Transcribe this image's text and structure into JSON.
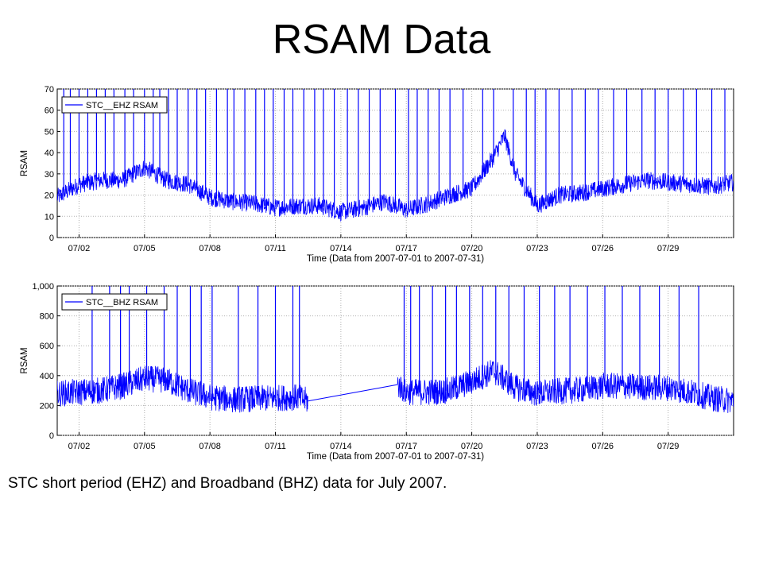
{
  "slide_title": "RSAM Data",
  "caption": "STC short period (EHZ) and Broadband (BHZ) data for July 2007.",
  "chart_data": [
    {
      "type": "line",
      "ylabel": "RSAM",
      "xlabel": "Time (Data from 2007-07-01 to 2007-07-31)",
      "legend": "STC__EHZ RSAM",
      "legend_placement": "top-left",
      "series_color": "#0000ff",
      "grid": true,
      "xlim": [
        0,
        31
      ],
      "ylim": [
        0,
        70
      ],
      "x_ticks": [
        1,
        4,
        7,
        10,
        13,
        16,
        19,
        22,
        25,
        28
      ],
      "x_tick_labels": [
        "07/02",
        "07/05",
        "07/08",
        "07/11",
        "07/14",
        "07/17",
        "07/20",
        "07/23",
        "07/26",
        "07/29"
      ],
      "y_ticks": [
        0,
        10,
        20,
        30,
        40,
        50,
        60,
        70
      ],
      "y_tick_labels": [
        "0",
        "10",
        "20",
        "30",
        "40",
        "50",
        "60",
        "70"
      ],
      "x": [
        0,
        1,
        2,
        3,
        4,
        5,
        6,
        7,
        8,
        9,
        10,
        11,
        12,
        13,
        14,
        15,
        16,
        17,
        18,
        19,
        20,
        20.5,
        21,
        22,
        23,
        24,
        25,
        26,
        27,
        28,
        29,
        30,
        31
      ],
      "y": [
        19,
        25,
        27,
        27,
        33,
        27,
        25,
        19,
        17,
        16,
        14,
        15,
        15,
        12,
        14,
        17,
        13,
        16,
        20,
        23,
        38,
        48,
        30,
        15,
        20,
        21,
        23,
        25,
        27,
        26,
        25,
        24,
        26
      ],
      "spikes": [
        0.3,
        0.6,
        1.0,
        1.4,
        1.8,
        2.2,
        2.6,
        3.1,
        3.5,
        4.0,
        4.4,
        4.7,
        5.1,
        5.5,
        6.0,
        6.4,
        6.8,
        7.3,
        7.8,
        8.1,
        8.6,
        9.1,
        9.5,
        9.9,
        10.4,
        10.8,
        11.3,
        11.8,
        12.2,
        12.7,
        13.3,
        13.8,
        14.3,
        14.8,
        15.5,
        16.1,
        16.5,
        17.0,
        17.5,
        18.0,
        18.6,
        19.5,
        20.0,
        20.9,
        21.5,
        21.9,
        22.4,
        23.0,
        23.6,
        24.2,
        24.8,
        25.5,
        26.1,
        26.8,
        27.4,
        28.0,
        28.7,
        29.3,
        30.0,
        30.6
      ]
    },
    {
      "type": "line",
      "ylabel": "RSAM",
      "xlabel": "Time (Data from 2007-07-01 to 2007-07-31)",
      "legend": "STC__BHZ RSAM",
      "legend_placement": "top-left",
      "series_color": "#0000ff",
      "grid": true,
      "xlim": [
        0,
        31
      ],
      "ylim": [
        0,
        1000
      ],
      "x_ticks": [
        1,
        4,
        7,
        10,
        13,
        16,
        19,
        22,
        25,
        28
      ],
      "x_tick_labels": [
        "07/02",
        "07/05",
        "07/08",
        "07/11",
        "07/14",
        "07/17",
        "07/20",
        "07/23",
        "07/26",
        "07/29"
      ],
      "y_ticks": [
        0,
        200,
        400,
        600,
        800,
        1000
      ],
      "y_tick_labels": [
        "0",
        "200",
        "400",
        "600",
        "800",
        "1,000"
      ],
      "x": [
        0,
        1,
        2,
        3,
        4,
        5,
        6,
        7,
        8,
        9,
        10,
        11,
        11.5,
        15.6,
        16,
        17,
        18,
        19,
        20,
        21,
        22,
        23,
        24,
        25,
        26,
        27,
        28,
        29,
        30,
        31
      ],
      "y": [
        280,
        290,
        300,
        330,
        380,
        370,
        300,
        255,
        240,
        245,
        250,
        255,
        230,
        340,
        290,
        290,
        300,
        360,
        430,
        320,
        280,
        295,
        305,
        330,
        330,
        320,
        320,
        290,
        250,
        230
      ],
      "gap_line": [
        [
          11.5,
          230
        ],
        [
          15.6,
          340
        ]
      ],
      "spikes": [
        1.6,
        2.4,
        2.9,
        3.3,
        4.1,
        4.9,
        5.5,
        6.1,
        6.6,
        7.1,
        8.3,
        9.2,
        10.0,
        10.8,
        11.1,
        15.9,
        16.2,
        16.6,
        17.2,
        17.8,
        18.3,
        18.9,
        19.5,
        20.1,
        20.7,
        21.4,
        22.1,
        22.8,
        23.5,
        24.3,
        25.1,
        25.9,
        26.7,
        27.6,
        28.5,
        29.4
      ]
    }
  ]
}
